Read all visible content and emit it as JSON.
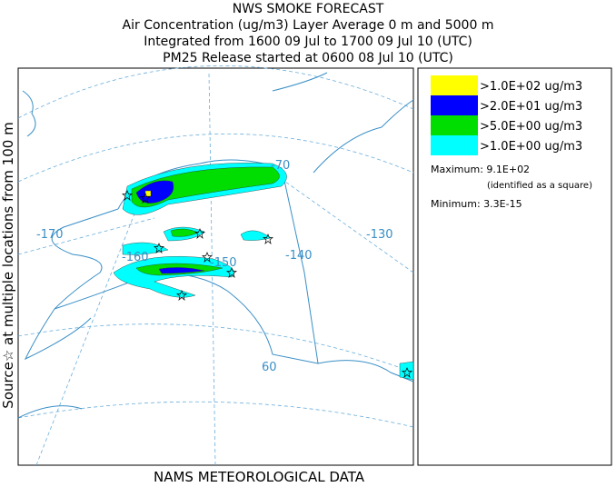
{
  "header": {
    "lines": [
      "NWS SMOKE FORECAST",
      "Air Concentration (ug/m3) Layer Average    0 m and  5000 m",
      "Integrated from 1600 09 Jul to 1700 09 Jul 10 (UTC)",
      "PM25 Release started at 0600 08 Jul 10 (UTC)"
    ]
  },
  "side_label": "Source☆   at multiple locations   from   100 m",
  "footer": "NAMS METEOROLOGICAL DATA",
  "map": {
    "labels": [
      "-70",
      "-170",
      "-160",
      "-150",
      "-140",
      "-130",
      "60"
    ]
  },
  "legend": {
    "entries": [
      {
        "label": ">1.0E+02 ug/m3",
        "color": "#ffff00"
      },
      {
        "label": ">2.0E+01 ug/m3",
        "color": "#0000ff"
      },
      {
        "label": ">5.0E+00 ug/m3",
        "color": "#00dd00"
      },
      {
        "label": ">1.0E+00 ug/m3",
        "color": "#00ffff"
      }
    ],
    "maximum": "Maximum: 9.1E+02",
    "maximum_note": "(identified as a square)",
    "minimum": "Minimum: 3.3E-15"
  }
}
